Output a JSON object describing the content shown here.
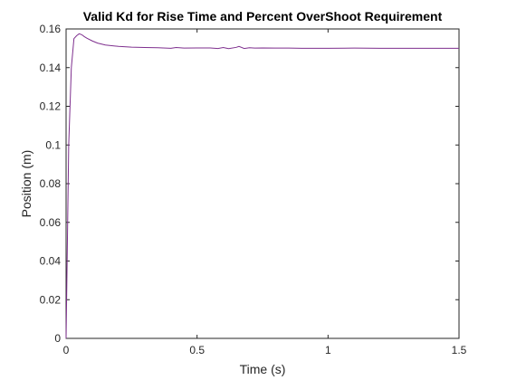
{
  "chart_data": {
    "type": "line",
    "title": "Valid Kd for Rise Time and Percent OverShoot Requirement",
    "xlabel": "Time (s)",
    "ylabel": "Position (m)",
    "xlim": [
      0,
      1.5
    ],
    "ylim": [
      0,
      0.16
    ],
    "xticks": [
      0,
      0.5,
      1,
      1.5
    ],
    "xtick_labels": [
      "0",
      "0.5",
      "1",
      "1.5"
    ],
    "yticks": [
      0,
      0.02,
      0.04,
      0.06,
      0.08,
      0.1,
      0.12,
      0.14,
      0.16
    ],
    "ytick_labels": [
      "0",
      "0.02",
      "0.04",
      "0.06",
      "0.08",
      "0.1",
      "0.12",
      "0.14",
      "0.16"
    ],
    "grid": false,
    "line_color": "#7E2F8E",
    "series": [
      {
        "x": [
          0,
          0.005,
          0.01,
          0.02,
          0.03,
          0.04,
          0.05,
          0.06,
          0.07,
          0.08,
          0.1,
          0.12,
          0.15,
          0.2,
          0.25,
          0.3,
          0.35,
          0.4,
          0.42,
          0.45,
          0.5,
          0.55,
          0.58,
          0.6,
          0.62,
          0.65,
          0.66,
          0.68,
          0.7,
          0.72,
          0.75,
          0.8,
          0.85,
          0.9,
          1.0,
          1.1,
          1.2,
          1.3,
          1.4,
          1.5
        ],
        "values": [
          0,
          0.05,
          0.1,
          0.14,
          0.155,
          0.1565,
          0.1575,
          0.157,
          0.156,
          0.1552,
          0.1538,
          0.1527,
          0.1517,
          0.151,
          0.1506,
          0.1504,
          0.1503,
          0.15,
          0.1504,
          0.1501,
          0.1502,
          0.1502,
          0.1499,
          0.1504,
          0.1498,
          0.1505,
          0.151,
          0.1499,
          0.1503,
          0.1501,
          0.1502,
          0.1501,
          0.1501,
          0.15,
          0.15,
          0.1501,
          0.15,
          0.15,
          0.15,
          0.15
        ]
      }
    ]
  }
}
